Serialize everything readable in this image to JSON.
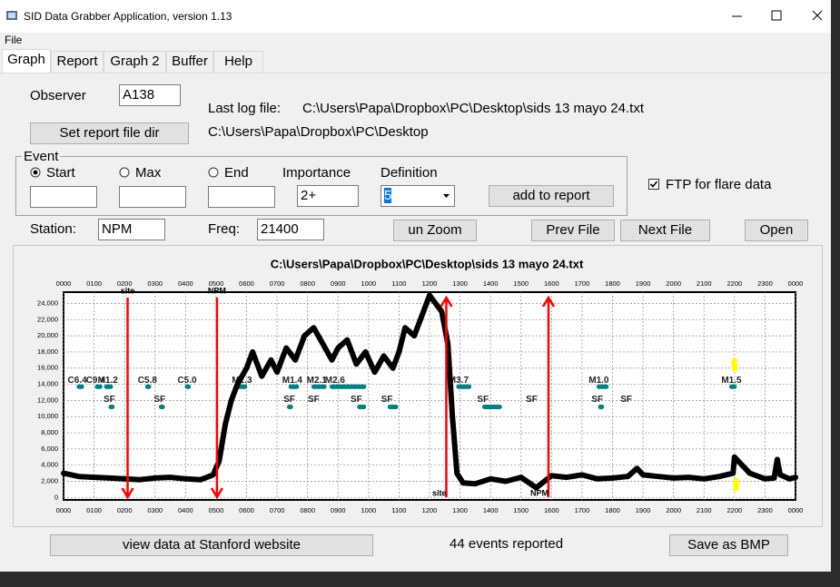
{
  "window": {
    "title": "SID Data Grabber Application, version 1.13"
  },
  "menu": [
    "File"
  ],
  "tabs": [
    "Graph",
    "Report",
    "Graph 2",
    "Buffer",
    "Help"
  ],
  "form": {
    "observer_label": "Observer",
    "observer": "A138",
    "last_log_label": "Last log file:",
    "last_log": "C:\\Users\\Papa\\Dropbox\\PC\\Desktop\\sids 13 mayo 24.txt",
    "report_dir_button": "Set report file dir",
    "report_dir": "C:\\Users\\Papa\\Dropbox\\PC\\Desktop",
    "event_group": "Event",
    "radios": [
      "Start",
      "Max",
      "End"
    ],
    "importance_label": "Importance",
    "importance": "2+",
    "definition_label": "Definition",
    "definition": "5",
    "add_button": "add to report",
    "ftp_label": "FTP for flare data",
    "station_label": "Station:",
    "station": "NPM",
    "freq_label": "Freq:",
    "freq": "21400",
    "buttons": [
      "un Zoom",
      "Prev File",
      "Next File",
      "Open"
    ]
  },
  "chart_data": {
    "type": "line",
    "title": "C:\\Users\\Papa\\Dropbox\\PC\\Desktop\\sids 13 mayo 24.txt",
    "color": "#000000",
    "x": [
      0,
      0.5,
      1,
      1.5,
      2,
      2.5,
      3,
      3.5,
      4,
      4.5,
      4.9,
      5.1,
      5.3,
      5.5,
      5.7,
      6,
      6.2,
      6.5,
      6.8,
      7,
      7.3,
      7.6,
      7.9,
      8.2,
      8.5,
      8.8,
      9,
      9.3,
      9.6,
      9.9,
      10.2,
      10.5,
      10.8,
      11,
      11.2,
      11.5,
      11.8,
      12,
      12.2,
      12.4,
      12.6,
      12.75,
      12.9,
      13.1,
      13.5,
      14,
      14.5,
      15,
      15.5,
      16,
      16.5,
      17,
      17.5,
      18,
      18.5,
      18.8,
      19,
      19.5,
      20,
      20.5,
      21,
      21.5,
      21.95,
      22,
      22.2,
      22.5,
      23,
      23.3,
      23.4,
      23.5,
      23.8,
      24
    ],
    "values": [
      3000,
      2600,
      2500,
      2400,
      2300,
      2200,
      2400,
      2500,
      2300,
      2200,
      2800,
      4500,
      9000,
      12000,
      14000,
      16000,
      18000,
      15000,
      17000,
      15500,
      18500,
      17000,
      20000,
      21000,
      19000,
      17000,
      18500,
      19500,
      16500,
      18000,
      15500,
      17500,
      16000,
      18000,
      21000,
      20000,
      23000,
      25000,
      24000,
      23000,
      19000,
      10000,
      3000,
      1800,
      1700,
      2300,
      2000,
      2500,
      1200,
      2700,
      2500,
      2800,
      2300,
      2400,
      2600,
      3600,
      2800,
      2600,
      2400,
      2500,
      2300,
      2600,
      3000,
      5000,
      4200,
      3000,
      2300,
      2400,
      4700,
      2800,
      2300,
      2500
    ],
    "xlim": [
      0,
      24
    ],
    "xticks": [
      {
        "value": 0,
        "label": "0000"
      },
      {
        "value": 1,
        "label": "0100"
      },
      {
        "value": 2,
        "label": "0200"
      },
      {
        "value": 3,
        "label": "0300"
      },
      {
        "value": 4,
        "label": "0400"
      },
      {
        "value": 5,
        "label": "0500"
      },
      {
        "value": 6,
        "label": "0600"
      },
      {
        "value": 7,
        "label": "0700"
      },
      {
        "value": 8,
        "label": "0800"
      },
      {
        "value": 9,
        "label": "0900"
      },
      {
        "value": 10,
        "label": "1000"
      },
      {
        "value": 11,
        "label": "1100"
      },
      {
        "value": 12,
        "label": "1200"
      },
      {
        "value": 13,
        "label": "1300"
      },
      {
        "value": 14,
        "label": "1400"
      },
      {
        "value": 15,
        "label": "1500"
      },
      {
        "value": 16,
        "label": "1600"
      },
      {
        "value": 17,
        "label": "1700"
      },
      {
        "value": 18,
        "label": "1800"
      },
      {
        "value": 19,
        "label": "1900"
      },
      {
        "value": 20,
        "label": "2000"
      },
      {
        "value": 21,
        "label": "2100"
      },
      {
        "value": 22,
        "label": "2200"
      },
      {
        "value": 23,
        "label": "2300"
      },
      {
        "value": 24,
        "label": "0000"
      }
    ],
    "ylim": [
      -300,
      25400
    ],
    "yticks": [
      0,
      {
        "value": 2000,
        "label": "2,000"
      },
      {
        "value": 4000,
        "label": "4,000"
      },
      {
        "value": 6000,
        "label": "6,000"
      },
      {
        "value": 8000,
        "label": "8,000"
      },
      {
        "value": 10000,
        "label": "10,000"
      },
      {
        "value": 12000,
        "label": "12,000"
      },
      {
        "value": 14000,
        "label": "14,000"
      },
      {
        "value": 16000,
        "label": "16,000"
      },
      {
        "value": 18000,
        "label": "18,000"
      },
      {
        "value": 20000,
        "label": "20,000"
      },
      {
        "value": 22000,
        "label": "22,000"
      },
      {
        "value": 24000,
        "label": "24,000"
      }
    ],
    "grid": true,
    "marker_color": "#ff0000",
    "markers": [
      {
        "label": "site",
        "x": 2.1,
        "direction": "down"
      },
      {
        "label": "NPM",
        "x": 5.03,
        "direction": "down"
      },
      {
        "label": "site",
        "x": 12.55,
        "direction": "up"
      },
      {
        "label": "NPM",
        "x": 15.9,
        "direction": "up"
      }
    ],
    "event_color": "#008080",
    "flare_level": 13700,
    "sf_level": 11200,
    "flares": [
      {
        "label": "C6.4",
        "x": 0.45,
        "start": 0.5,
        "end": 0.6
      },
      {
        "label": "C9.4",
        "x": 1.05,
        "start": 1.1,
        "end": 1.2
      },
      {
        "label": "M1.2",
        "x": 1.45,
        "start": 1.4,
        "end": 1.55
      },
      {
        "label": "C5.8",
        "x": 2.75,
        "start": 2.75,
        "end": 2.8
      },
      {
        "label": "C5.0",
        "x": 4.05,
        "start": 4.05,
        "end": 4.1
      },
      {
        "label": "M1.3",
        "x": 5.85,
        "start": 5.75,
        "end": 5.95
      },
      {
        "label": "M1.4",
        "x": 7.5,
        "start": 7.45,
        "end": 7.65
      },
      {
        "label": "M2.1",
        "x": 8.3,
        "start": 8.2,
        "end": 8.55
      },
      {
        "label": "M2.6",
        "x": 8.9,
        "start": 8.8,
        "end": 9.85
      },
      {
        "label": "M3.7",
        "x": 12.95,
        "start": 12.95,
        "end": 13.3
      },
      {
        "label": "M1.0",
        "x": 17.55,
        "start": 17.55,
        "end": 17.8
      },
      {
        "label": "M1.5",
        "x": 21.9,
        "start": 21.9,
        "end": 22.0
      }
    ],
    "sf": [
      {
        "label": "SF",
        "x": 1.5,
        "start": 1.55,
        "end": 1.6
      },
      {
        "label": "SF",
        "x": 3.15,
        "start": 3.2,
        "end": 3.25
      },
      {
        "label": "SF",
        "x": 7.4,
        "start": 7.4,
        "end": 7.45
      },
      {
        "label": "SF",
        "x": 8.2
      },
      {
        "label": "SF",
        "x": 9.6,
        "start": 9.7,
        "end": 9.85
      },
      {
        "label": "SF",
        "x": 10.6,
        "start": 10.7,
        "end": 10.9
      },
      {
        "label": "SF",
        "x": 13.75,
        "start": 13.8,
        "end": 14.3
      },
      {
        "label": "SF",
        "x": 15.35
      },
      {
        "label": "SF",
        "x": 17.5,
        "start": 17.6,
        "end": 17.65
      },
      {
        "label": "SF",
        "x": 18.45
      }
    ],
    "highlight_color": "#ffff00",
    "highlights": [
      {
        "x": 22.0,
        "y": 16400
      },
      {
        "x": 22.05,
        "y": 1600
      }
    ]
  },
  "footer": {
    "stanford_button": "view data at Stanford website",
    "events_reported": "44 events reported",
    "save_button": "Save as BMP"
  }
}
